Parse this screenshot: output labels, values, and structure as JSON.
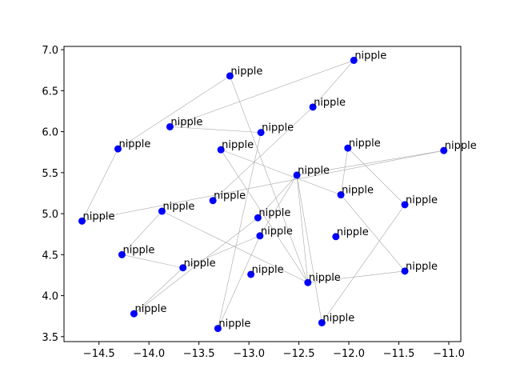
{
  "chart_data": {
    "type": "scatter",
    "title": "",
    "xlabel": "",
    "ylabel": "",
    "xlim": [
      -14.85,
      -10.88
    ],
    "ylim": [
      3.44,
      7.04
    ],
    "x_ticks": [
      -14.5,
      -14.0,
      -13.5,
      -13.0,
      -12.5,
      -12.0,
      -11.5,
      -11.0
    ],
    "x_tick_labels": [
      "−14.5",
      "−14.0",
      "−13.5",
      "−13.0",
      "−12.5",
      "−12.0",
      "−11.5",
      "−11.0"
    ],
    "y_ticks": [
      3.5,
      4.0,
      4.5,
      5.0,
      5.5,
      6.0,
      6.5,
      7.0
    ],
    "y_tick_labels": [
      "3.5",
      "4.0",
      "4.5",
      "5.0",
      "5.5",
      "6.0",
      "6.5",
      "7.0"
    ],
    "grid": false,
    "point_color": "#0000ff",
    "edge_color": "#a8a8a8",
    "points": [
      {
        "x": -11.95,
        "y": 6.87,
        "label": "nipple"
      },
      {
        "x": -13.19,
        "y": 6.68,
        "label": "nipple"
      },
      {
        "x": -12.36,
        "y": 6.3,
        "label": "nipple"
      },
      {
        "x": -13.79,
        "y": 6.06,
        "label": "nipple"
      },
      {
        "x": -12.88,
        "y": 5.99,
        "label": "nipple"
      },
      {
        "x": -14.31,
        "y": 5.79,
        "label": "nipple"
      },
      {
        "x": -13.28,
        "y": 5.78,
        "label": "nipple"
      },
      {
        "x": -12.01,
        "y": 5.8,
        "label": "nipple"
      },
      {
        "x": -11.05,
        "y": 5.77,
        "label": "nipple"
      },
      {
        "x": -12.52,
        "y": 5.47,
        "label": "nipple"
      },
      {
        "x": -13.36,
        "y": 5.16,
        "label": "nipple"
      },
      {
        "x": -12.08,
        "y": 5.23,
        "label": "nipple"
      },
      {
        "x": -11.44,
        "y": 5.11,
        "label": "nipple"
      },
      {
        "x": -13.87,
        "y": 5.03,
        "label": "nipple"
      },
      {
        "x": -12.91,
        "y": 4.95,
        "label": "nipple"
      },
      {
        "x": -14.67,
        "y": 4.91,
        "label": "nipple"
      },
      {
        "x": -12.89,
        "y": 4.73,
        "label": "nipple"
      },
      {
        "x": -12.13,
        "y": 4.72,
        "label": "nipple"
      },
      {
        "x": -14.27,
        "y": 4.5,
        "label": "nipple"
      },
      {
        "x": -13.66,
        "y": 4.34,
        "label": "nipple"
      },
      {
        "x": -11.44,
        "y": 4.3,
        "label": "nipple"
      },
      {
        "x": -12.98,
        "y": 4.26,
        "label": "nipple"
      },
      {
        "x": -12.41,
        "y": 4.16,
        "label": "nipple"
      },
      {
        "x": -14.15,
        "y": 3.78,
        "label": "nipple"
      },
      {
        "x": -12.27,
        "y": 3.67,
        "label": "nipple"
      },
      {
        "x": -13.31,
        "y": 3.6,
        "label": "nipple"
      }
    ],
    "edges": [
      [
        0,
        3
      ],
      [
        0,
        2
      ],
      [
        2,
        10
      ],
      [
        1,
        22
      ],
      [
        1,
        5
      ],
      [
        5,
        15
      ],
      [
        3,
        4
      ],
      [
        4,
        25
      ],
      [
        6,
        22
      ],
      [
        6,
        11
      ],
      [
        11,
        7
      ],
      [
        11,
        20
      ],
      [
        7,
        12
      ],
      [
        8,
        15
      ],
      [
        8,
        9
      ],
      [
        9,
        22
      ],
      [
        9,
        14
      ],
      [
        9,
        16
      ],
      [
        13,
        18
      ],
      [
        13,
        22
      ],
      [
        14,
        23
      ],
      [
        16,
        19
      ],
      [
        16,
        25
      ],
      [
        19,
        18
      ],
      [
        19,
        23
      ],
      [
        22,
        20
      ],
      [
        12,
        24
      ],
      [
        24,
        9
      ]
    ]
  }
}
